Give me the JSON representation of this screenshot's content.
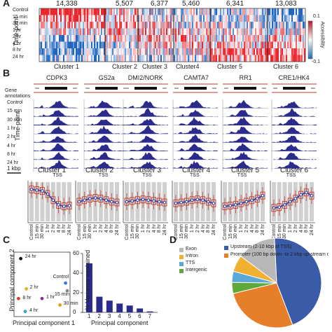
{
  "panels": {
    "A": "A",
    "B": "B",
    "C": "C",
    "D": "D"
  },
  "panelA": {
    "counts": [
      "14,338",
      "5,507",
      "6,377",
      "5,460",
      "6,341",
      "13,083"
    ],
    "clusters": [
      "Cluster 1",
      "Cluster 2",
      "Cluster 3",
      "Cluster4",
      "Cluster 5",
      "Cluster 6"
    ],
    "timepoints": [
      "Control",
      "15 min",
      "30 min",
      "1 hr",
      "2 hr",
      "4 hr",
      "8 hr",
      "24 hr"
    ],
    "ylabel": "Time-point",
    "colorbar_title": "Accessibility",
    "colorbar_max": "0.1",
    "colorbar_min": "-0.1",
    "colors": {
      "high": "#b2182b",
      "low": "#2166ac"
    }
  },
  "panelB": {
    "genes": [
      "CDPK3",
      "GS2a",
      "DMI2/NORK",
      "CAMTA7",
      "RR1",
      "CRE1/HK4"
    ],
    "gene_annotations_label": "Gene annotations",
    "timepoints": [
      "Control",
      "15 min",
      "30 min",
      "1 hr",
      "2 hr",
      "4 hr",
      "8 hr",
      "24 hr"
    ],
    "ylabel": "Time-point",
    "tss": "TSS",
    "scale": "1 kbp",
    "track_color": "#2b2b8c"
  },
  "panelB2": {
    "clusters": [
      "Cluster 1",
      "Cluster 2",
      "Cluster 3",
      "Cluster 4",
      "Cluster 5",
      "Cluster 6"
    ],
    "xticks": [
      "Control",
      "15 min",
      "30 min",
      "1 hr",
      "2 hr",
      "4 hr",
      "8 hr",
      "24 hr"
    ]
  },
  "panelC": {
    "xlabel": "Principal component 1",
    "ylabel": "Principal component 2",
    "points": [
      {
        "label": "24 hr",
        "color": "#111111"
      },
      {
        "label": "Control",
        "color": "#3a7bd5"
      },
      {
        "label": "2 hr",
        "color": "#e0b020"
      },
      {
        "label": "8 hr",
        "color": "#d04020"
      },
      {
        "label": "15 min",
        "color": "#888888"
      },
      {
        "label": "1 hr",
        "color": "#8a2a9a"
      },
      {
        "label": "30 min",
        "color": "#e8a018"
      },
      {
        "label": "4 hr",
        "color": "#3aa0d0"
      }
    ]
  },
  "chart_data": [
    {
      "type": "bar",
      "title": "",
      "xlabel": "Principal component",
      "ylabel": "% Variance explained",
      "categories": [
        "1",
        "2",
        "3",
        "4",
        "5",
        "6",
        "7"
      ],
      "values": [
        50,
        16,
        12,
        9,
        7,
        4,
        1
      ],
      "ylim": [
        0,
        60
      ],
      "yticks": [
        "0",
        "20",
        "40",
        "60"
      ],
      "color": "#2b2b8c"
    },
    {
      "type": "pie",
      "title": "",
      "categories": [
        "Upstream (2-10 kbp of TSS)",
        "Promoter (100 bp down- to 2 kbp up-stream of TSS)",
        "Intergenic",
        "TTS",
        "Intron",
        "Exon"
      ],
      "values": [
        45,
        27,
        4,
        4,
        6,
        14
      ],
      "colors": [
        "#3a5ba8",
        "#e67e2a",
        "#5fa83a",
        "#5aa8d8",
        "#f0b030",
        "#b8b8b8"
      ],
      "legend_left": [
        "Exon",
        "Intron",
        "TTS",
        "Intergenic"
      ],
      "legend_right": [
        "Upstream (2-10 kbp of TSS)",
        "Promoter (100 bp down- to 2 kbp up-stream of TSS)"
      ]
    }
  ]
}
